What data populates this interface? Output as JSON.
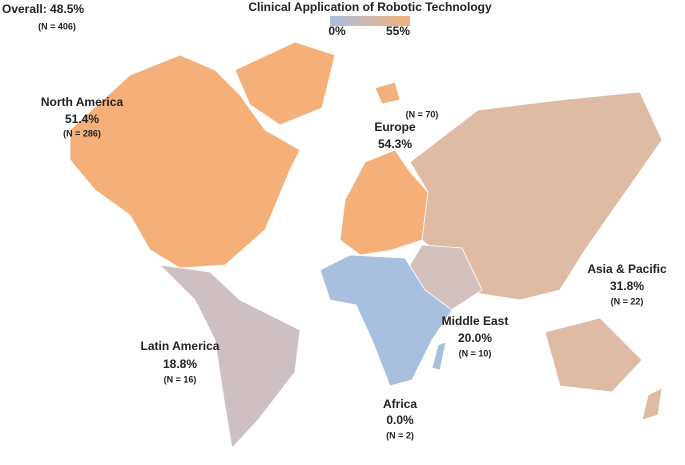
{
  "header": {
    "title": "Clinical Application of Robotic Technology",
    "overall": "Overall: 48.5%",
    "overall_n": "(N = 406)"
  },
  "legend": {
    "min": "0%",
    "max": "55%",
    "colors": [
      "#a9bfdf",
      "#f5b07a"
    ]
  },
  "regions": [
    {
      "name": "North America",
      "value": "51.4%",
      "n": "(N = 286)",
      "color": "#f5b07a"
    },
    {
      "name": "Europe",
      "value": "54.3%",
      "n": "(N = 70)",
      "color": "#f5b07a"
    },
    {
      "name": "Asia & Pacific",
      "value": "31.8%",
      "n": "(N = 22)",
      "color": "#dfbba3"
    },
    {
      "name": "Middle East",
      "value": "20.0%",
      "n": "(N = 10)",
      "color": "#d2c0bd"
    },
    {
      "name": "Latin America",
      "value": "18.8%",
      "n": "(N = 16)",
      "color": "#cdbfc2"
    },
    {
      "name": "Africa",
      "value": "0.0%",
      "n": "(N = 2)",
      "color": "#a9bfdf"
    }
  ]
}
